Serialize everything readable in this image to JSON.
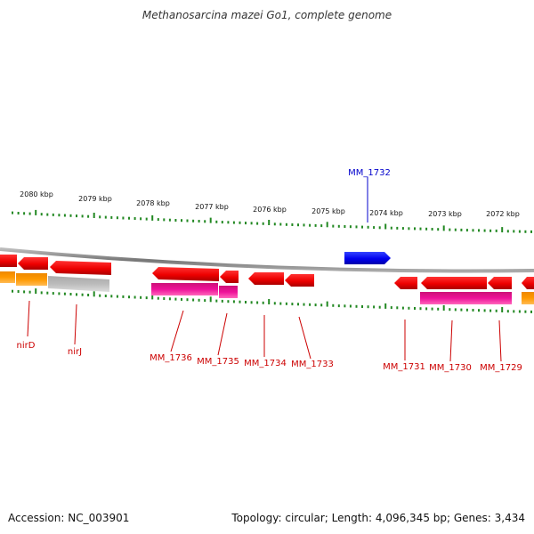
{
  "title": "Methanosarcina mazei Go1, complete genome",
  "footer": {
    "accession": "Accession: NC_003901",
    "topology": "Topology: circular; Length: 4,096,345 bp; Genes: 3,434"
  },
  "colors": {
    "gene_red": "#ee0000",
    "gene_red_dark": "#aa0000",
    "gene_blue": "#0000ee",
    "gene_magenta": "#ee1199",
    "gene_orange": "#ff9900",
    "gene_gray": "#bbbbbb",
    "backbone": "#888888",
    "tick": "#228822",
    "label_red": "#cc0000",
    "label_blue": "#0000cc"
  },
  "scale": {
    "kbp_labels": [
      "2080 kbp",
      "2079 kbp",
      "2078 kbp",
      "2077 kbp",
      "2076 kbp",
      "2075 kbp",
      "2074 kbp",
      "2073 kbp",
      "2072 kbp"
    ]
  },
  "gene_labels": {
    "top": [
      "MM_1732"
    ],
    "bottom": [
      "nirD",
      "nirJ",
      "MM_1736",
      "MM_1735",
      "MM_1734",
      "MM_1733",
      "MM_1731",
      "MM_1730",
      "MM_1729"
    ]
  }
}
